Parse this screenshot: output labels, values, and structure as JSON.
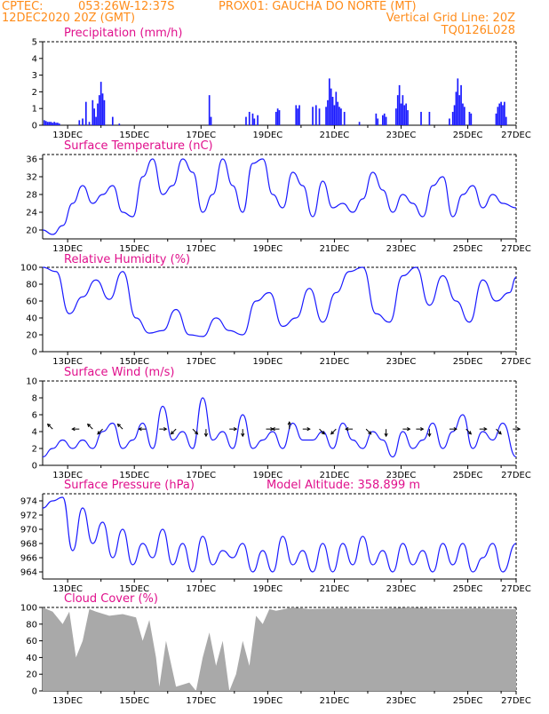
{
  "header": {
    "line1_left": "CPTEC:",
    "line1_coords": "053:26W-12:37S",
    "line1_station": "PROX01: GAUCHA DO NORTE (MT)",
    "line2_left": "12DEC2020 20Z (GMT)",
    "line2_right": "Vertical Grid Line: 20Z",
    "line3_right": "TQ0126L028"
  },
  "x_dates": [
    "13DEC",
    "15DEC",
    "17DEC",
    "19DEC",
    "21DEC",
    "23DEC",
    "25DEC",
    "27DEC"
  ],
  "colors": {
    "header": "#ff8c1a",
    "titles": "#e0108c",
    "line": "#1a1aff",
    "cloud": "#a9a9a9"
  },
  "chart_data": [
    {
      "id": "precip",
      "type": "bar",
      "title": "Precipitation (mm/h)",
      "ylim": [
        0,
        5
      ],
      "yticks": [
        0,
        1,
        2,
        3,
        4,
        5
      ],
      "x_unit": "days since 12DEC2020 20Z",
      "xlim": [
        0,
        14.2
      ],
      "bars": [
        [
          0.05,
          0.3
        ],
        [
          0.1,
          0.25
        ],
        [
          0.15,
          0.2
        ],
        [
          0.2,
          0.2
        ],
        [
          0.25,
          0.2
        ],
        [
          0.3,
          0.15
        ],
        [
          0.35,
          0.2
        ],
        [
          0.4,
          0.15
        ],
        [
          0.45,
          0.15
        ],
        [
          0.5,
          0.1
        ],
        [
          1.1,
          0.3
        ],
        [
          1.2,
          0.4
        ],
        [
          1.3,
          1.4
        ],
        [
          1.4,
          0.2
        ],
        [
          1.5,
          1.5
        ],
        [
          1.55,
          1.0
        ],
        [
          1.6,
          0.5
        ],
        [
          1.65,
          1.3
        ],
        [
          1.7,
          1.8
        ],
        [
          1.75,
          2.6
        ],
        [
          1.8,
          1.9
        ],
        [
          1.85,
          1.5
        ],
        [
          2.1,
          0.5
        ],
        [
          2.3,
          0.1
        ],
        [
          5.0,
          1.8
        ],
        [
          5.05,
          0.5
        ],
        [
          6.1,
          0.5
        ],
        [
          6.2,
          0.8
        ],
        [
          6.3,
          0.7
        ],
        [
          6.35,
          0.4
        ],
        [
          6.45,
          0.6
        ],
        [
          7.0,
          0.8
        ],
        [
          7.05,
          1.0
        ],
        [
          7.1,
          0.9
        ],
        [
          7.6,
          1.2
        ],
        [
          7.65,
          1.0
        ],
        [
          7.7,
          1.2
        ],
        [
          8.1,
          1.1
        ],
        [
          8.2,
          1.2
        ],
        [
          8.3,
          1.0
        ],
        [
          8.5,
          1.1
        ],
        [
          8.55,
          1.5
        ],
        [
          8.6,
          2.8
        ],
        [
          8.65,
          2.2
        ],
        [
          8.7,
          1.7
        ],
        [
          8.75,
          1.2
        ],
        [
          8.8,
          2.0
        ],
        [
          8.85,
          1.4
        ],
        [
          8.9,
          1.1
        ],
        [
          8.95,
          1.0
        ],
        [
          9.05,
          0.8
        ],
        [
          9.5,
          0.2
        ],
        [
          10.0,
          0.7
        ],
        [
          10.05,
          0.4
        ],
        [
          10.2,
          0.6
        ],
        [
          10.25,
          0.7
        ],
        [
          10.3,
          0.5
        ],
        [
          10.6,
          1.0
        ],
        [
          10.65,
          1.8
        ],
        [
          10.7,
          2.4
        ],
        [
          10.75,
          1.3
        ],
        [
          10.8,
          1.8
        ],
        [
          10.85,
          1.2
        ],
        [
          10.9,
          1.3
        ],
        [
          10.95,
          0.9
        ],
        [
          11.35,
          0.8
        ],
        [
          11.6,
          0.8
        ],
        [
          12.2,
          0.4
        ],
        [
          12.3,
          0.8
        ],
        [
          12.35,
          1.2
        ],
        [
          12.4,
          2.0
        ],
        [
          12.45,
          2.8
        ],
        [
          12.5,
          1.8
        ],
        [
          12.55,
          2.4
        ],
        [
          12.6,
          1.3
        ],
        [
          12.65,
          1.1
        ],
        [
          12.8,
          0.8
        ],
        [
          12.85,
          0.7
        ],
        [
          13.6,
          0.7
        ],
        [
          13.65,
          1.1
        ],
        [
          13.7,
          1.3
        ],
        [
          13.75,
          1.4
        ],
        [
          13.8,
          1.2
        ],
        [
          13.85,
          1.4
        ],
        [
          13.9,
          0.5
        ]
      ]
    },
    {
      "id": "temp",
      "type": "line",
      "title": "Surface Temperature (nC)",
      "ylim": [
        18,
        37
      ],
      "yticks": [
        20,
        24,
        28,
        32,
        36
      ],
      "xlim": [
        0,
        14.2
      ],
      "x": [
        0,
        0.3,
        0.6,
        0.9,
        1.2,
        1.5,
        1.8,
        2.1,
        2.4,
        2.7,
        3.0,
        3.3,
        3.6,
        3.9,
        4.2,
        4.5,
        4.8,
        5.1,
        5.4,
        5.7,
        6.0,
        6.3,
        6.6,
        6.9,
        7.2,
        7.5,
        7.8,
        8.1,
        8.4,
        8.7,
        9.0,
        9.3,
        9.6,
        9.9,
        10.2,
        10.5,
        10.8,
        11.1,
        11.4,
        11.7,
        12.0,
        12.3,
        12.6,
        12.9,
        13.2,
        13.5,
        13.8,
        14.2
      ],
      "y": [
        20,
        19,
        21,
        26,
        30,
        26,
        28,
        30,
        24,
        23,
        32,
        36,
        28,
        30,
        36,
        33,
        24,
        28,
        36,
        30,
        24,
        35,
        36,
        28,
        25,
        33,
        30,
        23,
        31,
        25,
        26,
        24,
        27,
        33,
        29,
        24,
        28,
        26,
        23,
        30,
        32,
        23,
        28,
        30,
        25,
        28,
        26,
        25
      ]
    },
    {
      "id": "rh",
      "type": "line",
      "title": "Relative Humidity (%)",
      "ylim": [
        0,
        100
      ],
      "yticks": [
        0,
        20,
        40,
        60,
        80,
        100
      ],
      "xlim": [
        0,
        14.2
      ],
      "x": [
        0,
        0.4,
        0.8,
        1.2,
        1.6,
        2.0,
        2.4,
        2.8,
        3.2,
        3.6,
        4.0,
        4.4,
        4.8,
        5.2,
        5.6,
        6.0,
        6.4,
        6.8,
        7.2,
        7.6,
        8.0,
        8.4,
        8.8,
        9.2,
        9.6,
        10.0,
        10.4,
        10.8,
        11.2,
        11.6,
        12.0,
        12.4,
        12.8,
        13.2,
        13.6,
        14.0,
        14.2
      ],
      "y": [
        100,
        95,
        45,
        65,
        85,
        62,
        95,
        40,
        22,
        25,
        50,
        20,
        18,
        40,
        25,
        20,
        60,
        70,
        30,
        40,
        75,
        35,
        70,
        95,
        100,
        45,
        35,
        90,
        100,
        55,
        90,
        60,
        35,
        85,
        60,
        70,
        88
      ]
    },
    {
      "id": "wind",
      "type": "line",
      "title": "Surface Wind (m/s)",
      "ylim": [
        0,
        10
      ],
      "yticks": [
        0,
        2,
        4,
        6,
        8,
        10
      ],
      "xlim": [
        0,
        14.2
      ],
      "x": [
        0,
        0.3,
        0.6,
        0.9,
        1.2,
        1.5,
        1.8,
        2.1,
        2.4,
        2.7,
        3.0,
        3.3,
        3.6,
        3.9,
        4.2,
        4.5,
        4.8,
        5.1,
        5.4,
        5.7,
        6.0,
        6.3,
        6.6,
        6.9,
        7.2,
        7.5,
        7.8,
        8.1,
        8.4,
        8.7,
        9.0,
        9.3,
        9.6,
        9.9,
        10.2,
        10.5,
        10.8,
        11.1,
        11.4,
        11.7,
        12.0,
        12.3,
        12.6,
        12.9,
        13.2,
        13.5,
        13.8,
        14.2
      ],
      "y": [
        1,
        2,
        3,
        2,
        3,
        2,
        4,
        5,
        2,
        3,
        5,
        2,
        7,
        3,
        4,
        2,
        8,
        3,
        4,
        2,
        6,
        2,
        3,
        4,
        2,
        5,
        3,
        3,
        4,
        2,
        5,
        3,
        2,
        4,
        3,
        1,
        4,
        2,
        3,
        5,
        2,
        4,
        6,
        2,
        4,
        3,
        5,
        1
      ],
      "arrows": [
        [
          0.3,
          "NW"
        ],
        [
          1.1,
          "W"
        ],
        [
          1.5,
          "NW"
        ],
        [
          1.8,
          "SW"
        ],
        [
          2.4,
          "NW"
        ],
        [
          3.1,
          "W"
        ],
        [
          3.5,
          "E"
        ],
        [
          4.0,
          "SW"
        ],
        [
          4.5,
          "SE"
        ],
        [
          4.9,
          "S"
        ],
        [
          5.6,
          "E"
        ],
        [
          6.0,
          "S"
        ],
        [
          6.7,
          "E"
        ],
        [
          7.1,
          "W"
        ],
        [
          7.4,
          "N"
        ],
        [
          7.8,
          "E"
        ],
        [
          8.3,
          "SE"
        ],
        [
          8.8,
          "SW"
        ],
        [
          9.3,
          "W"
        ],
        [
          9.7,
          "SE"
        ],
        [
          10.3,
          "S"
        ],
        [
          10.8,
          "E"
        ],
        [
          11.2,
          "E"
        ],
        [
          11.6,
          "S"
        ],
        [
          12.2,
          "E"
        ],
        [
          12.7,
          "SE"
        ],
        [
          13.1,
          "E"
        ],
        [
          13.6,
          "SE"
        ],
        [
          14.1,
          "E"
        ]
      ]
    },
    {
      "id": "pres",
      "type": "line",
      "title": "Surface Pressure (hPa)",
      "annotation": "Model Altitude: 358.899 m",
      "ylim": [
        963,
        975
      ],
      "yticks": [
        964,
        966,
        968,
        970,
        972,
        974
      ],
      "xlim": [
        0,
        14.2
      ],
      "x": [
        0,
        0.3,
        0.6,
        0.9,
        1.2,
        1.5,
        1.8,
        2.1,
        2.4,
        2.7,
        3.0,
        3.3,
        3.6,
        3.9,
        4.2,
        4.5,
        4.8,
        5.1,
        5.4,
        5.7,
        6.0,
        6.3,
        6.6,
        6.9,
        7.2,
        7.5,
        7.8,
        8.1,
        8.4,
        8.7,
        9.0,
        9.3,
        9.6,
        9.9,
        10.2,
        10.5,
        10.8,
        11.1,
        11.4,
        11.7,
        12.0,
        12.3,
        12.6,
        12.9,
        13.2,
        13.5,
        13.8,
        14.2
      ],
      "y": [
        973,
        974,
        974.5,
        967,
        973,
        968,
        971,
        966,
        970,
        965,
        968,
        966,
        970,
        965,
        968,
        964,
        969,
        965,
        967,
        966,
        968,
        964,
        967,
        964,
        969,
        965,
        967,
        964,
        968,
        964,
        968,
        965,
        969,
        965,
        967,
        964,
        968,
        965,
        967,
        964,
        968,
        965,
        968,
        964,
        966,
        968,
        964,
        968
      ]
    },
    {
      "id": "cloud",
      "type": "area",
      "title": "Cloud Cover (%)",
      "ylim": [
        0,
        100
      ],
      "yticks": [
        0,
        20,
        40,
        60,
        80,
        100
      ],
      "xlim": [
        0,
        14.2
      ],
      "x": [
        0,
        0.3,
        0.6,
        0.8,
        1.0,
        1.2,
        1.4,
        1.6,
        2.0,
        2.4,
        2.8,
        3.0,
        3.2,
        3.4,
        3.5,
        3.7,
        4.0,
        4.4,
        4.6,
        4.8,
        5.0,
        5.2,
        5.4,
        5.6,
        5.8,
        6.0,
        6.2,
        6.4,
        6.6,
        6.8,
        7.0,
        7.5,
        8.0,
        9.0,
        10.0,
        11.0,
        12.0,
        13.0,
        14.2
      ],
      "y": [
        100,
        95,
        80,
        95,
        40,
        60,
        98,
        95,
        90,
        92,
        88,
        60,
        85,
        40,
        5,
        60,
        5,
        10,
        0,
        40,
        70,
        30,
        60,
        0,
        20,
        60,
        30,
        90,
        80,
        98,
        96,
        100,
        98,
        99,
        98,
        100,
        98,
        99,
        98
      ]
    }
  ]
}
